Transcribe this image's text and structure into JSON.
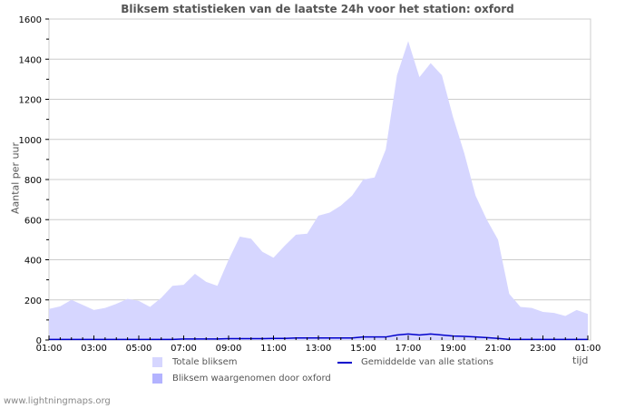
{
  "title": "Bliksem statistieken van de laatste 24h voor het station: oxford",
  "ylabel": "Aantal per uur",
  "xlabel": "tijd",
  "footer": "www.lightningmaps.org",
  "legend": {
    "total": "Totale bliksem",
    "station": "Bliksem waargenomen door oxford",
    "average": "Gemiddelde van alle stations"
  },
  "colors": {
    "total": "#d6d6ff",
    "station": "#b3b3ff",
    "average": "#0000cc",
    "grid": "#cccccc"
  },
  "chart_data": {
    "type": "area",
    "title": "Bliksem statistieken van de laatste 24h voor het station: oxford",
    "xlabel": "tijd",
    "ylabel": "Aantal per uur",
    "ylim": [
      0,
      1600
    ],
    "yticks": [
      0,
      200,
      400,
      600,
      800,
      1000,
      1200,
      1400,
      1600
    ],
    "xtick_labels": [
      "01:00",
      "03:00",
      "05:00",
      "07:00",
      "09:00",
      "11:00",
      "13:00",
      "15:00",
      "17:00",
      "19:00",
      "21:00",
      "23:00",
      "01:00"
    ],
    "grid": true,
    "legend_position": "bottom",
    "x": [
      "01:00",
      "01:30",
      "02:00",
      "02:30",
      "03:00",
      "03:30",
      "04:00",
      "04:30",
      "05:00",
      "05:30",
      "06:00",
      "06:30",
      "07:00",
      "07:30",
      "08:00",
      "08:30",
      "09:00",
      "09:30",
      "10:00",
      "10:30",
      "11:00",
      "11:30",
      "12:00",
      "12:30",
      "13:00",
      "13:30",
      "14:00",
      "14:30",
      "15:00",
      "15:30",
      "16:00",
      "16:30",
      "17:00",
      "17:30",
      "18:00",
      "18:30",
      "19:00",
      "19:30",
      "20:00",
      "20:30",
      "21:00",
      "21:30",
      "22:00",
      "22:30",
      "23:00",
      "23:30",
      "00:00",
      "00:30",
      "01:00"
    ],
    "series": [
      {
        "name": "Totale bliksem",
        "values": [
          155,
          168,
          200,
          175,
          150,
          160,
          180,
          205,
          195,
          165,
          210,
          270,
          275,
          330,
          290,
          270,
          400,
          515,
          505,
          440,
          410,
          470,
          525,
          530,
          620,
          635,
          670,
          720,
          800,
          810,
          950,
          1320,
          1490,
          1310,
          1380,
          1320,
          1110,
          930,
          720,
          600,
          500,
          230,
          165,
          160,
          140,
          135,
          120,
          150,
          130
        ]
      },
      {
        "name": "Bliksem waargenomen door oxford",
        "values": [
          0,
          0,
          0,
          0,
          0,
          0,
          0,
          0,
          0,
          0,
          0,
          0,
          0,
          0,
          0,
          0,
          0,
          0,
          0,
          0,
          0,
          0,
          0,
          0,
          0,
          0,
          0,
          0,
          0,
          0,
          0,
          0,
          0,
          0,
          0,
          0,
          0,
          0,
          0,
          0,
          0,
          0,
          0,
          0,
          0,
          0,
          0,
          0,
          0
        ]
      },
      {
        "name": "Gemiddelde van alle stations",
        "values": [
          3,
          3,
          3,
          3,
          3,
          3,
          3,
          3,
          3,
          3,
          3,
          3,
          5,
          5,
          5,
          5,
          7,
          7,
          7,
          7,
          8,
          8,
          10,
          10,
          10,
          10,
          10,
          10,
          15,
          15,
          15,
          25,
          30,
          25,
          30,
          25,
          20,
          18,
          15,
          12,
          8,
          3,
          3,
          3,
          3,
          3,
          3,
          3,
          3
        ]
      }
    ]
  }
}
